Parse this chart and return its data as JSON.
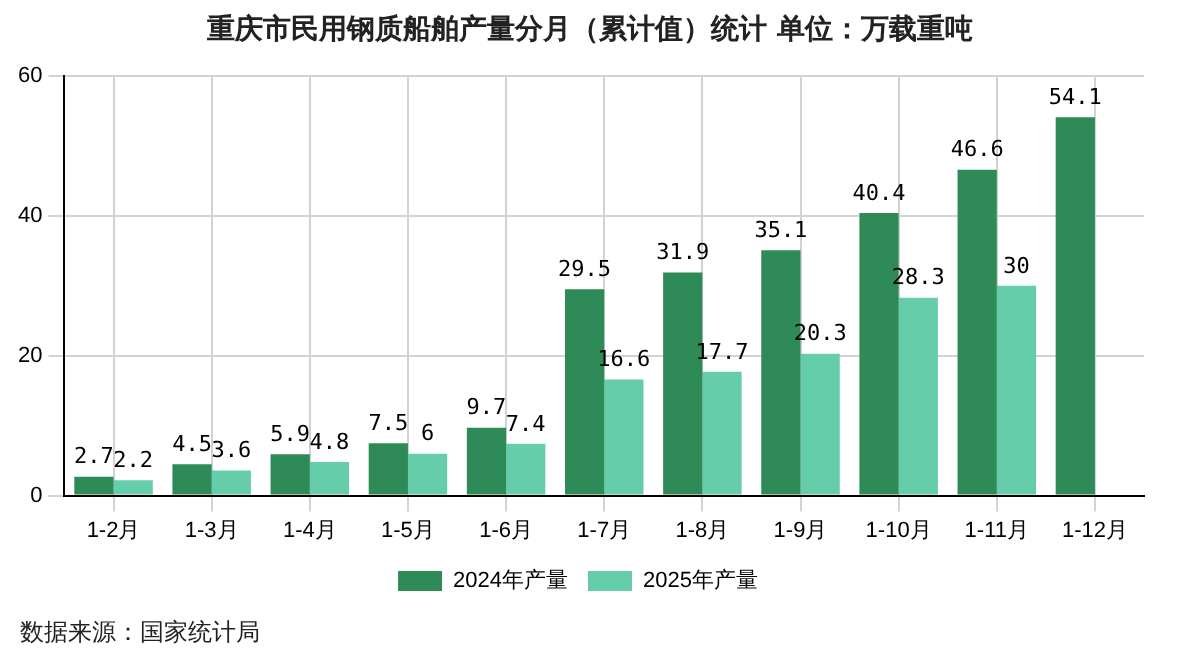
{
  "chart_data": {
    "type": "bar",
    "title": "重庆市民用钢质船舶产量分月（累计值）统计 单位：万载重吨",
    "categories": [
      "1-2月",
      "1-3月",
      "1-4月",
      "1-5月",
      "1-6月",
      "1-7月",
      "1-8月",
      "1-9月",
      "1-10月",
      "1-11月",
      "1-12月"
    ],
    "series": [
      {
        "name": "2024年产量",
        "color": "#2e8b57",
        "values": [
          2.7,
          4.5,
          5.9,
          7.5,
          9.7,
          29.5,
          31.9,
          35.1,
          40.4,
          46.6,
          54.1
        ]
      },
      {
        "name": "2025年产量",
        "color": "#66cdaa",
        "values": [
          2.2,
          3.6,
          4.8,
          6,
          7.4,
          16.6,
          17.7,
          20.3,
          28.3,
          30,
          null
        ]
      }
    ],
    "ylim": [
      0,
      60
    ],
    "yticks": [
      0,
      20,
      40,
      60
    ],
    "grid": true,
    "legend": "bottom",
    "data_labels": true,
    "annotations": [
      "数据来源：国家统计局"
    ]
  }
}
